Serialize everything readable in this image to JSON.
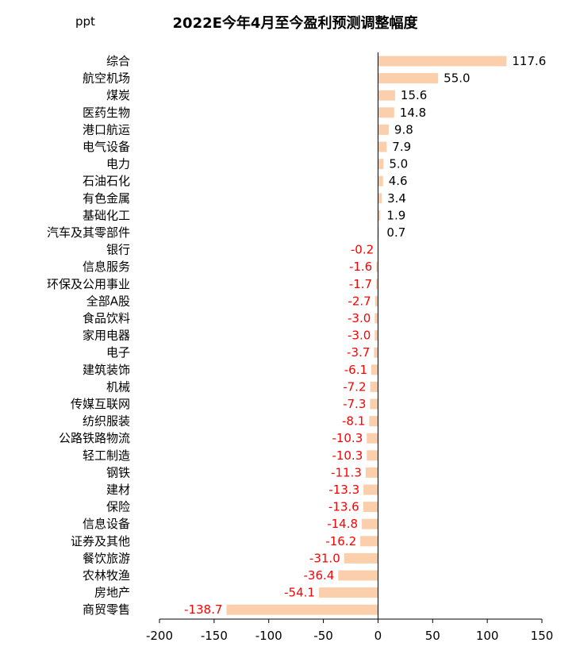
{
  "chart_data": {
    "type": "bar",
    "orientation": "horizontal",
    "title": "2022E今年4月至今盈利预测调整幅度",
    "unit_label": "ppt",
    "categories": [
      "综合",
      "航空机场",
      "煤炭",
      "医药生物",
      "港口航运",
      "电气设备",
      "电力",
      "石油石化",
      "有色金属",
      "基础化工",
      "汽车及其零部件",
      "银行",
      "信息服务",
      "环保及公用事业",
      "全部A股",
      "食品饮料",
      "家用电器",
      "电子",
      "建筑装饰",
      "机械",
      "传媒互联网",
      "纺织服装",
      "公路铁路物流",
      "轻工制造",
      "钢铁",
      "建材",
      "保险",
      "信息设备",
      "证券及其他",
      "餐饮旅游",
      "农林牧渔",
      "房地产",
      "商贸零售"
    ],
    "values": [
      117.6,
      55.0,
      15.6,
      14.8,
      9.8,
      7.9,
      5.0,
      4.6,
      3.4,
      1.9,
      0.7,
      -0.2,
      -1.6,
      -1.7,
      -2.7,
      -3.0,
      -3.0,
      -3.7,
      -6.1,
      -7.2,
      -7.3,
      -8.1,
      -10.3,
      -10.3,
      -11.3,
      -13.3,
      -13.6,
      -14.8,
      -16.2,
      -31.0,
      -36.4,
      -54.1,
      -138.7
    ],
    "value_labels": [
      "117.6",
      "55.0",
      "15.6",
      "14.8",
      "9.8",
      "7.9",
      "5.0",
      "4.6",
      "3.4",
      "1.9",
      "0.7",
      "-0.2",
      "-1.6",
      "-1.7",
      "-2.7",
      "-3.0",
      "-3.0",
      "-3.7",
      "-6.1",
      "-7.2",
      "-7.3",
      "-8.1",
      "-10.3",
      "-10.3",
      "-11.3",
      "-13.3",
      "-13.6",
      "-14.8",
      "-16.2",
      "-31.0",
      "-36.4",
      "-54.1",
      "-138.7"
    ],
    "xlim": [
      -200,
      150
    ],
    "xticks": [
      -200,
      -150,
      -100,
      -50,
      0,
      50,
      100,
      150
    ],
    "xtick_labels": [
      "-200",
      "-150",
      "-100",
      "-50",
      "0",
      "50",
      "100",
      "150"
    ],
    "grid": false,
    "legend": "none",
    "colors": {
      "bar": "#fbcfab",
      "positive_label": "#000000",
      "negative_label": "#ff0000",
      "axis": "#000000"
    }
  }
}
